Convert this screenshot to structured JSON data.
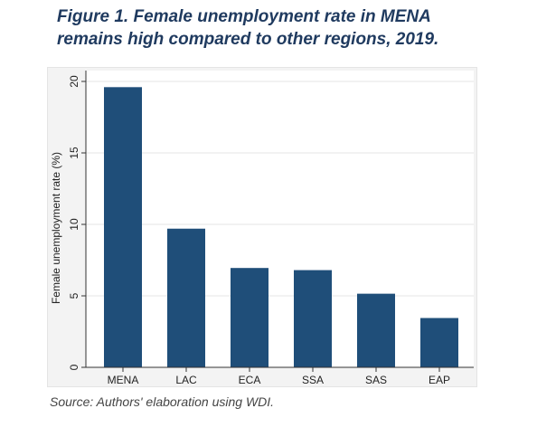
{
  "figure": {
    "title_line1": "Figure 1. Female unemployment rate in MENA",
    "title_line2": "remains high compared to other regions, 2019.",
    "source": "Source: Authors' elaboration using WDI."
  },
  "colors": {
    "bar": "#1f4e79",
    "title": "#1f3a5f",
    "grid": "#ffffff",
    "plot_background": "#ffffff",
    "outer_background": "#f3f3f3"
  },
  "chart_data": {
    "type": "bar",
    "categories": [
      "MENA",
      "LAC",
      "ECA",
      "SSA",
      "SAS",
      "EAP"
    ],
    "values": [
      19.6,
      9.7,
      6.95,
      6.8,
      5.15,
      3.45
    ],
    "title": "",
    "xlabel": "",
    "ylabel": "Female unemployment rate (%)",
    "ylim": [
      0,
      20
    ],
    "yticks": [
      0,
      5,
      10,
      15,
      20
    ],
    "grid": true,
    "legend": "none"
  }
}
